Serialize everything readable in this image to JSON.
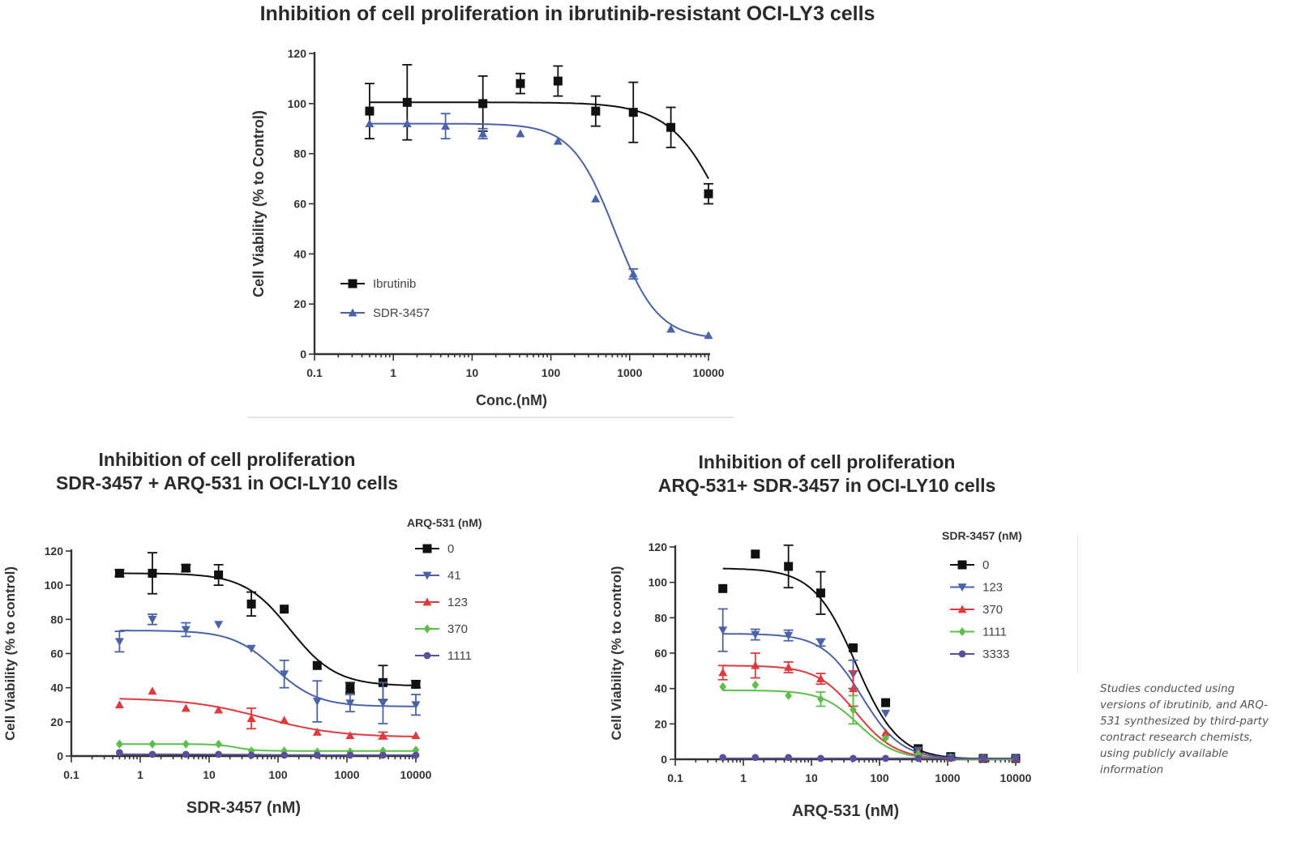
{
  "titles": {
    "main": "Inhibition of cell proliferation in ibrutinib-resistant OCI-LY3 cells",
    "bottom_left": [
      "Inhibition of cell proliferation",
      "SDR-3457 + ARQ-531 in OCI-LY10 cells"
    ],
    "bottom_right": [
      "Inhibition of cell proliferation",
      "ARQ-531+ SDR-3457 in OCI-LY10 cells"
    ]
  },
  "footnote": "Studies conducted using versions of ibrutinib, and ARQ-531 synthesized by third-party contract research chemists, using publicly available information",
  "colors": {
    "black": "#111111",
    "blue": "#4a63a8",
    "red": "#e0393e",
    "green": "#5cbf4a",
    "purple": "#5a4f9a",
    "axis": "#333333"
  },
  "chart_data": [
    {
      "id": "top",
      "type": "line",
      "title": "Inhibition of cell proliferation in ibrutinib-resistant OCI-LY3 cells",
      "xlabel": "Conc.(nM)",
      "ylabel": "Cell Viability (% to Control)",
      "xscale": "log",
      "xlim": [
        0.1,
        10000
      ],
      "ylim": [
        0,
        120
      ],
      "xticks": [
        "0.1",
        "1",
        "10",
        "100",
        "1000",
        "10000"
      ],
      "yticks": [
        0,
        20,
        40,
        60,
        80,
        100,
        120
      ],
      "legend_title": "",
      "legend_position": "lower-left",
      "series": [
        {
          "name": "Ibrutinib",
          "color": "#111111",
          "marker": "square",
          "x": [
            0.5,
            1.5,
            13.7,
            41,
            123,
            370,
            1111,
            3333,
            10000
          ],
          "y": [
            97,
            100.5,
            100,
            108,
            109,
            97,
            96.5,
            90.5,
            64
          ],
          "err": [
            11,
            15,
            11,
            4,
            6,
            6,
            12,
            8,
            4
          ],
          "fit": {
            "top": 100.5,
            "bottom": 0,
            "ec50": 20000,
            "hill": 1.2
          }
        },
        {
          "name": "SDR-3457",
          "color": "#4a63a8",
          "marker": "triangle-up",
          "x": [
            0.5,
            1.5,
            4.6,
            13.7,
            41,
            123,
            370,
            1111,
            3333,
            10000
          ],
          "y": [
            92,
            92,
            91,
            88,
            88,
            85,
            62,
            32,
            10,
            7.5
          ],
          "err": [
            0,
            0,
            5,
            2,
            0,
            0,
            0,
            2,
            0,
            0
          ],
          "fit": {
            "top": 92,
            "bottom": 6,
            "ec50": 650,
            "hill": 1.6
          }
        }
      ]
    },
    {
      "id": "bottom_left",
      "type": "line",
      "title": "Inhibition of cell proliferation SDR-3457 + ARQ-531 in OCI-LY10 cells",
      "xlabel": "SDR-3457 (nM)",
      "ylabel": "Cell Viability (% to control)",
      "xscale": "log",
      "xlim": [
        0.1,
        10000
      ],
      "ylim": [
        0,
        120
      ],
      "xticks": [
        "0.1",
        "1",
        "10",
        "100",
        "1000",
        "10000"
      ],
      "yticks": [
        0,
        20,
        40,
        60,
        80,
        100,
        120
      ],
      "legend_title": "ARQ-531 (nM)",
      "legend_position": "right",
      "series": [
        {
          "name": "0",
          "color": "#111111",
          "marker": "square",
          "x": [
            0.5,
            1.5,
            4.6,
            13.7,
            41,
            123,
            370,
            1111,
            3333,
            10000
          ],
          "y": [
            107,
            107,
            110,
            106,
            89,
            86,
            53,
            40,
            43,
            42
          ],
          "err": [
            2,
            12,
            2,
            6,
            7,
            0,
            0,
            3,
            10,
            2
          ],
          "fit": {
            "top": 107,
            "bottom": 41,
            "ec50": 150,
            "hill": 1.3
          }
        },
        {
          "name": "41",
          "color": "#4a63a8",
          "marker": "triangle-down",
          "x": [
            0.5,
            1.5,
            4.6,
            13.7,
            41,
            123,
            370,
            1111,
            3333,
            10000
          ],
          "y": [
            67,
            80,
            74,
            77,
            63,
            48,
            32,
            31,
            31,
            30
          ],
          "err": [
            6,
            3,
            4,
            0,
            0,
            8,
            12,
            5,
            12,
            6
          ],
          "fit": {
            "top": 73.5,
            "bottom": 29,
            "ec50": 90,
            "hill": 1.4
          }
        },
        {
          "name": "123",
          "color": "#e0393e",
          "marker": "triangle-up",
          "x": [
            0.5,
            1.5,
            4.6,
            13.7,
            41,
            123,
            370,
            1111,
            3333,
            10000
          ],
          "y": [
            30,
            38,
            28,
            27,
            22,
            21,
            14,
            12,
            12,
            12
          ],
          "err": [
            0,
            0,
            0,
            0,
            6,
            0,
            0,
            0,
            2,
            0
          ],
          "fit": {
            "top": 34,
            "bottom": 11,
            "ec50": 60,
            "hill": 0.8
          }
        },
        {
          "name": "370",
          "color": "#5cbf4a",
          "marker": "diamond",
          "x": [
            0.5,
            1.5,
            4.6,
            13.7,
            41,
            123,
            370,
            1111,
            3333,
            10000
          ],
          "y": [
            7,
            7,
            7,
            7,
            3,
            3,
            2.5,
            2.5,
            3,
            3.5
          ],
          "err": [
            0,
            0,
            0,
            0,
            0,
            0,
            0,
            0,
            0,
            0
          ],
          "fit": {
            "top": 7,
            "bottom": 3,
            "ec50": 25,
            "hill": 3
          }
        },
        {
          "name": "1111",
          "color": "#5a4f9a",
          "marker": "circle",
          "x": [
            0.5,
            1.5,
            4.6,
            13.7,
            41,
            123,
            370,
            1111,
            3333,
            10000
          ],
          "y": [
            2,
            1,
            1,
            1,
            0.5,
            0.5,
            0.5,
            0.5,
            0.5,
            0.5
          ],
          "err": [
            0,
            0,
            0,
            0,
            0,
            0,
            0,
            0,
            0,
            0
          ],
          "fit": {
            "top": 1,
            "bottom": 0.5,
            "ec50": 50,
            "hill": 1
          }
        }
      ]
    },
    {
      "id": "bottom_right",
      "type": "line",
      "title": "Inhibition of cell proliferation ARQ-531+ SDR-3457 in OCI-LY10 cells",
      "xlabel": "ARQ-531 (nM)",
      "ylabel": "Cell Viability (% to control)",
      "xscale": "log",
      "xlim": [
        0.1,
        10000
      ],
      "ylim": [
        0,
        120
      ],
      "xticks": [
        "0.1",
        "1",
        "10",
        "100",
        "1000",
        "10000"
      ],
      "yticks": [
        0,
        20,
        40,
        60,
        80,
        100,
        120
      ],
      "legend_title": "SDR-3457 (nM)",
      "legend_position": "right",
      "series": [
        {
          "name": "0",
          "color": "#111111",
          "marker": "square",
          "x": [
            0.5,
            1.5,
            4.6,
            13.7,
            41,
            123,
            370,
            1111,
            3333,
            10000
          ],
          "y": [
            96.5,
            116,
            109,
            94,
            63,
            32,
            6,
            1.5,
            0.5,
            0.5
          ],
          "err": [
            0,
            0,
            12,
            12,
            0,
            0,
            0,
            0,
            0,
            0
          ],
          "fit": {
            "top": 108,
            "bottom": 0,
            "ec50": 45,
            "hill": 1.4
          }
        },
        {
          "name": "123",
          "color": "#4a63a8",
          "marker": "triangle-down",
          "x": [
            0.5,
            1.5,
            4.6,
            13.7,
            41,
            123,
            370,
            1111,
            3333,
            10000
          ],
          "y": [
            73,
            70.5,
            70,
            66,
            48,
            26,
            5,
            1,
            0.5,
            0.5
          ],
          "err": [
            12,
            3,
            3,
            2,
            8,
            0,
            0,
            0,
            0,
            0
          ],
          "fit": {
            "top": 71,
            "bottom": 0,
            "ec50": 55,
            "hill": 1.5
          }
        },
        {
          "name": "370",
          "color": "#e0393e",
          "marker": "triangle-up",
          "x": [
            0.5,
            1.5,
            4.6,
            13.7,
            41,
            123,
            370,
            1111,
            3333,
            10000
          ],
          "y": [
            49,
            53,
            52,
            45.5,
            40,
            15,
            4,
            1,
            0.5,
            0.5
          ],
          "err": [
            4,
            7,
            3,
            3,
            10,
            0,
            0,
            0,
            0,
            0
          ],
          "fit": {
            "top": 53,
            "bottom": 0,
            "ec50": 45,
            "hill": 1.5
          }
        },
        {
          "name": "1111",
          "color": "#5cbf4a",
          "marker": "diamond",
          "x": [
            0.5,
            1.5,
            4.6,
            13.7,
            41,
            123,
            370,
            1111,
            3333,
            10000
          ],
          "y": [
            41,
            42,
            36,
            34,
            28,
            12,
            3,
            1,
            0.5,
            0.5
          ],
          "err": [
            0,
            0,
            0,
            4,
            8,
            0,
            0,
            0,
            0,
            0
          ],
          "fit": {
            "top": 39,
            "bottom": 0,
            "ec50": 50,
            "hill": 1.6
          }
        },
        {
          "name": "3333",
          "color": "#5a4f9a",
          "marker": "circle",
          "x": [
            0.5,
            1.5,
            4.6,
            13.7,
            41,
            123,
            370,
            1111,
            3333,
            10000
          ],
          "y": [
            1,
            1,
            1,
            0.5,
            0.5,
            0.5,
            0.5,
            0.5,
            0.5,
            0.5
          ],
          "err": [
            0,
            0,
            0,
            0,
            0,
            0,
            0,
            0,
            0,
            0
          ],
          "fit": {
            "top": 0.5,
            "bottom": 0.5,
            "ec50": 50,
            "hill": 1
          }
        }
      ]
    }
  ]
}
